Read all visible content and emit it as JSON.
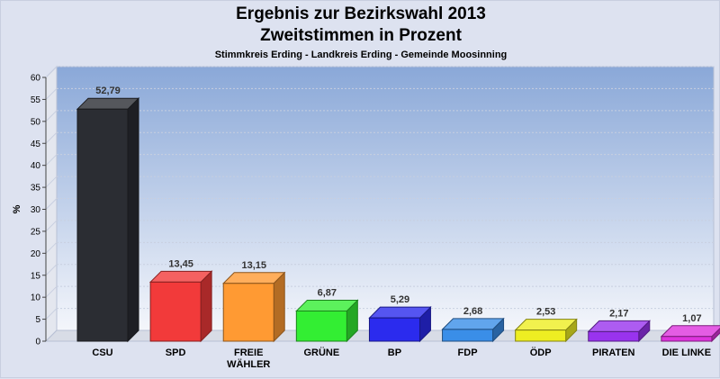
{
  "header": {
    "title": "Ergebnis zur Bezirkswahl 2013",
    "subtitle": "Zweitstimmen in Prozent",
    "region": "Stimmkreis Erding - Landkreis Erding - Gemeinde Moosinning"
  },
  "chart_data": {
    "type": "bar",
    "title": "Ergebnis zur Bezirkswahl 2013",
    "subtitle": "Zweitstimmen in Prozent",
    "xlabel": "",
    "ylabel": "%",
    "ylim": [
      0,
      60
    ],
    "yticks": [
      0,
      5,
      10,
      15,
      20,
      25,
      30,
      35,
      40,
      45,
      50,
      55,
      60
    ],
    "grid": true,
    "categories": [
      "CSU",
      "SPD",
      "FREIE WÄHLER",
      "GRÜNE",
      "BP",
      "FDP",
      "ÖDP",
      "PIRATEN",
      "DIE LINKE"
    ],
    "category_lines": [
      [
        "CSU"
      ],
      [
        "SPD"
      ],
      [
        "FREIE",
        "WÄHLER"
      ],
      [
        "GRÜNE"
      ],
      [
        "BP"
      ],
      [
        "FDP"
      ],
      [
        "ÖDP"
      ],
      [
        "PIRATEN"
      ],
      [
        "DIE LINKE"
      ]
    ],
    "values": [
      52.79,
      13.45,
      13.15,
      6.87,
      5.29,
      2.68,
      2.53,
      2.17,
      1.07
    ],
    "value_labels": [
      "52,79",
      "13,45",
      "13,15",
      "6,87",
      "5,29",
      "2,68",
      "2,53",
      "2,17",
      "1,07"
    ],
    "colors": [
      "#2b2d33",
      "#f23a3a",
      "#ff9a33",
      "#33ee33",
      "#2b2bee",
      "#3a8ee8",
      "#eeee22",
      "#9933ee",
      "#dd33dd"
    ]
  }
}
